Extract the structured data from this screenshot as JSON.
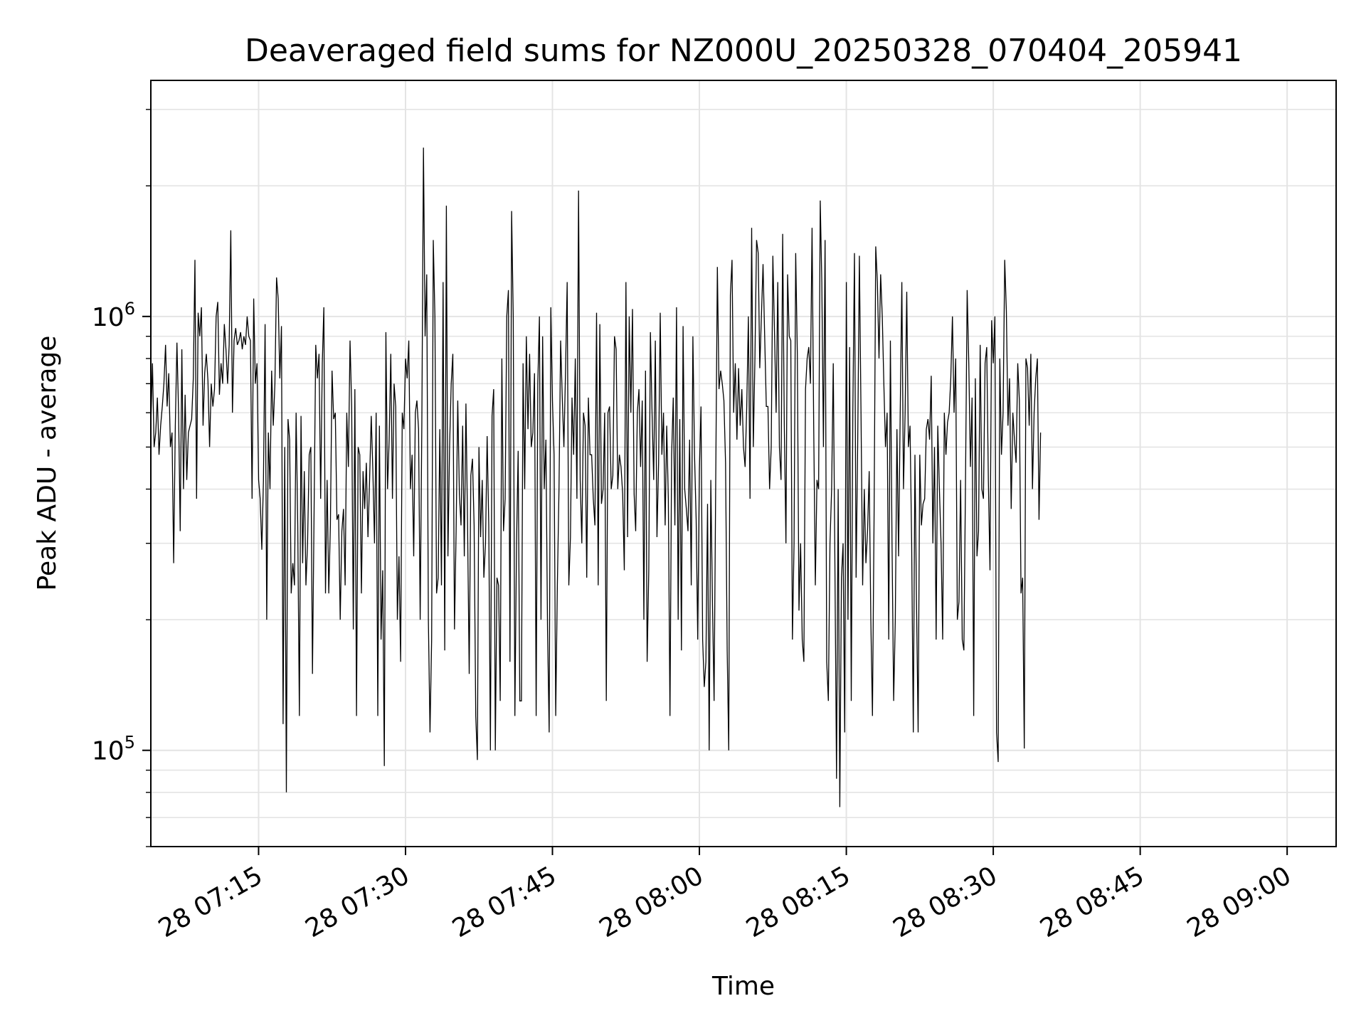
{
  "chart_data": {
    "type": "line",
    "title": "Deaveraged field sums for NZ000U_20250328_070404_205941",
    "xlabel": "Time",
    "ylabel": "Peak ADU - average",
    "yscale": "log",
    "grid": true,
    "legend": "none",
    "xlim": [
      "2025-03-28 07:04:00",
      "2025-03-28 09:05:00"
    ],
    "ylim": [
      60000,
      3500000
    ],
    "x_ticks": [
      "28 07:15",
      "28 07:30",
      "28 07:45",
      "28 08:00",
      "28 08:15",
      "28 08:30",
      "28 08:45",
      "28 09:00"
    ],
    "x_tick_times": [
      "2025-03-28 07:15:00",
      "2025-03-28 07:30:00",
      "2025-03-28 07:45:00",
      "2025-03-28 08:00:00",
      "2025-03-28 08:15:00",
      "2025-03-28 08:30:00",
      "2025-03-28 08:45:00",
      "2025-03-28 09:00:00"
    ],
    "y_ticks": [
      {
        "base": "10",
        "exp": "5",
        "value": 100000
      },
      {
        "base": "10",
        "exp": "6",
        "value": 1000000
      }
    ],
    "series": [
      {
        "color": "#000000",
        "sample_interval_seconds": 10,
        "x_start": "2025-03-28 07:04:00",
        "values": [
          560000,
          780000,
          500000,
          540000,
          650000,
          480000,
          560000,
          620000,
          700000,
          860000,
          620000,
          740000,
          500000,
          540000,
          270000,
          560000,
          870000,
          600000,
          320000,
          840000,
          400000,
          660000,
          420000,
          540000,
          560000,
          580000,
          720000,
          1350000,
          380000,
          1020000,
          900000,
          1050000,
          560000,
          740000,
          820000,
          710000,
          500000,
          700000,
          620000,
          680000,
          1000000,
          1080000,
          660000,
          780000,
          700000,
          960000,
          840000,
          700000,
          860000,
          1580000,
          600000,
          880000,
          940000,
          860000,
          880000,
          920000,
          840000,
          900000,
          860000,
          1000000,
          900000,
          880000,
          380000,
          1100000,
          700000,
          780000,
          420000,
          380000,
          290000,
          420000,
          960000,
          200000,
          540000,
          400000,
          750000,
          560000,
          700000,
          1230000,
          1100000,
          720000,
          950000,
          115000,
          500000,
          80000,
          580000,
          520000,
          230000,
          270000,
          240000,
          600000,
          330000,
          120000,
          590000,
          270000,
          440000,
          240000,
          300000,
          480000,
          500000,
          150000,
          360000,
          860000,
          720000,
          820000,
          380000,
          780000,
          1050000,
          230000,
          420000,
          230000,
          330000,
          750000,
          580000,
          600000,
          340000,
          350000,
          200000,
          320000,
          360000,
          240000,
          600000,
          450000,
          880000,
          620000,
          190000,
          680000,
          120000,
          500000,
          480000,
          230000,
          440000,
          360000,
          460000,
          310000,
          420000,
          590000,
          440000,
          300000,
          600000,
          120000,
          560000,
          180000,
          260000,
          92000,
          920000,
          400000,
          520000,
          820000,
          380000,
          700000,
          620000,
          200000,
          280000,
          160000,
          600000,
          550000,
          800000,
          720000,
          880000,
          400000,
          480000,
          280000,
          600000,
          640000,
          550000,
          200000,
          560000,
          2450000,
          900000,
          1250000,
          200000,
          110000,
          180000,
          1500000,
          1000000,
          230000,
          250000,
          550000,
          240000,
          1200000,
          170000,
          1800000,
          280000,
          500000,
          700000,
          820000,
          190000,
          320000,
          640000,
          390000,
          330000,
          560000,
          280000,
          630000,
          330000,
          150000,
          430000,
          470000,
          330000,
          120000,
          95000,
          500000,
          310000,
          420000,
          250000,
          300000,
          530000,
          330000,
          100000,
          590000,
          680000,
          100000,
          250000,
          240000,
          130000,
          800000,
          320000,
          380000,
          1000000,
          1150000,
          160000,
          1750000,
          1000000,
          120000,
          300000,
          490000,
          130000,
          130000,
          780000,
          400000,
          900000,
          550000,
          820000,
          500000,
          540000,
          740000,
          120000,
          700000,
          1000000,
          200000,
          900000,
          400000,
          520000,
          190000,
          110000,
          1050000,
          640000,
          480000,
          120000,
          240000,
          400000,
          880000,
          650000,
          500000,
          750000,
          1200000,
          240000,
          310000,
          650000,
          480000,
          800000,
          380000,
          1950000,
          420000,
          300000,
          600000,
          560000,
          250000,
          650000,
          480000,
          480000,
          380000,
          330000,
          1020000,
          240000,
          960000,
          370000,
          400000,
          600000,
          130000,
          600000,
          620000,
          400000,
          430000,
          900000,
          840000,
          400000,
          480000,
          450000,
          390000,
          260000,
          1200000,
          310000,
          1000000,
          600000,
          1040000,
          390000,
          320000,
          600000,
          680000,
          450000,
          640000,
          200000,
          750000,
          160000,
          260000,
          920000,
          600000,
          420000,
          880000,
          310000,
          460000,
          1020000,
          480000,
          600000,
          330000,
          560000,
          380000,
          120000,
          480000,
          650000,
          330000,
          1050000,
          200000,
          580000,
          170000,
          950000,
          400000,
          360000,
          320000,
          520000,
          240000,
          900000,
          480000,
          340000,
          180000,
          440000,
          620000,
          180000,
          140000,
          160000,
          370000,
          100000,
          420000,
          220000,
          130000,
          420000,
          1300000,
          680000,
          750000,
          700000,
          640000,
          460000,
          170000,
          100000,
          1120000,
          1350000,
          600000,
          780000,
          520000,
          760000,
          560000,
          680000,
          500000,
          450000,
          620000,
          1000000,
          380000,
          1600000,
          500000,
          800000,
          1500000,
          1400000,
          760000,
          1000000,
          1320000,
          900000,
          620000,
          620000,
          400000,
          500000,
          1380000,
          920000,
          600000,
          1200000,
          500000,
          420000,
          1550000,
          560000,
          300000,
          1250000,
          900000,
          880000,
          180000,
          300000,
          1400000,
          820000,
          210000,
          300000,
          180000,
          160000,
          680000,
          800000,
          850000,
          700000,
          1600000,
          560000,
          240000,
          420000,
          400000,
          1850000,
          1200000,
          500000,
          1500000,
          160000,
          130000,
          300000,
          400000,
          780000,
          270000,
          86000,
          400000,
          74000,
          250000,
          300000,
          110000,
          1200000,
          200000,
          850000,
          130000,
          600000,
          1400000,
          250000,
          520000,
          1380000,
          600000,
          240000,
          400000,
          270000,
          320000,
          440000,
          200000,
          120000,
          350000,
          1450000,
          1200000,
          800000,
          1250000,
          1000000,
          700000,
          500000,
          600000,
          180000,
          880000,
          300000,
          130000,
          200000,
          550000,
          280000,
          600000,
          1200000,
          400000,
          600000,
          1140000,
          500000,
          560000,
          300000,
          110000,
          480000,
          220000,
          110000,
          480000,
          330000,
          370000,
          380000,
          550000,
          580000,
          520000,
          730000,
          300000,
          500000,
          180000,
          560000,
          400000,
          300000,
          180000,
          600000,
          480000,
          570000,
          600000,
          720000,
          1000000,
          600000,
          800000,
          200000,
          220000,
          420000,
          180000,
          170000,
          420000,
          1150000,
          780000,
          450000,
          650000,
          120000,
          720000,
          280000,
          320000,
          860000,
          400000,
          380000,
          780000,
          850000,
          420000,
          260000,
          980000,
          780000,
          1000000,
          110000,
          94000,
          800000,
          480000,
          600000,
          1350000,
          1030000,
          560000,
          720000,
          360000,
          600000,
          520000,
          460000,
          780000,
          640000,
          230000,
          250000,
          101000,
          800000,
          760000,
          560000,
          820000,
          400000,
          600000,
          720000,
          800000,
          340000,
          540000
        ]
      }
    ]
  }
}
